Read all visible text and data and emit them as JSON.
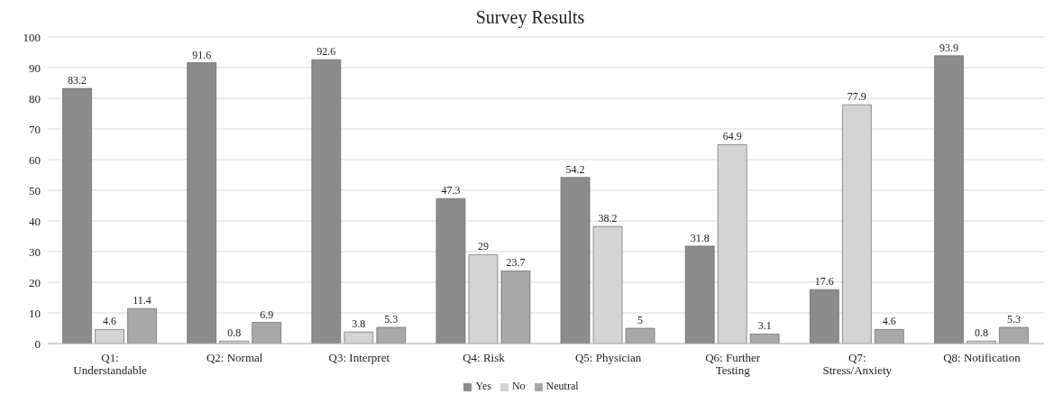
{
  "chart_data": {
    "type": "bar",
    "title": "Survey Results",
    "categories": [
      "Q1: Understandable",
      "Q2: Normal",
      "Q3: Interpret",
      "Q4: Risk",
      "Q5: Physician",
      "Q6: Further Testing",
      "Q7: Stress/Anxiety",
      "Q8: Notification"
    ],
    "series": [
      {
        "name": "Yes",
        "color": "#8c8c8c",
        "values": [
          83.2,
          91.6,
          92.6,
          47.3,
          54.2,
          31.8,
          17.6,
          93.9
        ]
      },
      {
        "name": "No",
        "color": "#d4d4d4",
        "values": [
          4.6,
          0.8,
          3.8,
          29,
          38.2,
          64.9,
          77.9,
          0.8
        ]
      },
      {
        "name": "Neutral",
        "color": "#a8a8a8",
        "values": [
          11.4,
          6.9,
          5.3,
          23.7,
          5,
          3.1,
          4.6,
          5.3
        ]
      }
    ],
    "ylim": [
      0,
      100
    ],
    "yticks": [
      0,
      10,
      20,
      30,
      40,
      50,
      60,
      70,
      80,
      90,
      100
    ],
    "grid": "y",
    "legend": "bottom",
    "data_labels": true
  }
}
